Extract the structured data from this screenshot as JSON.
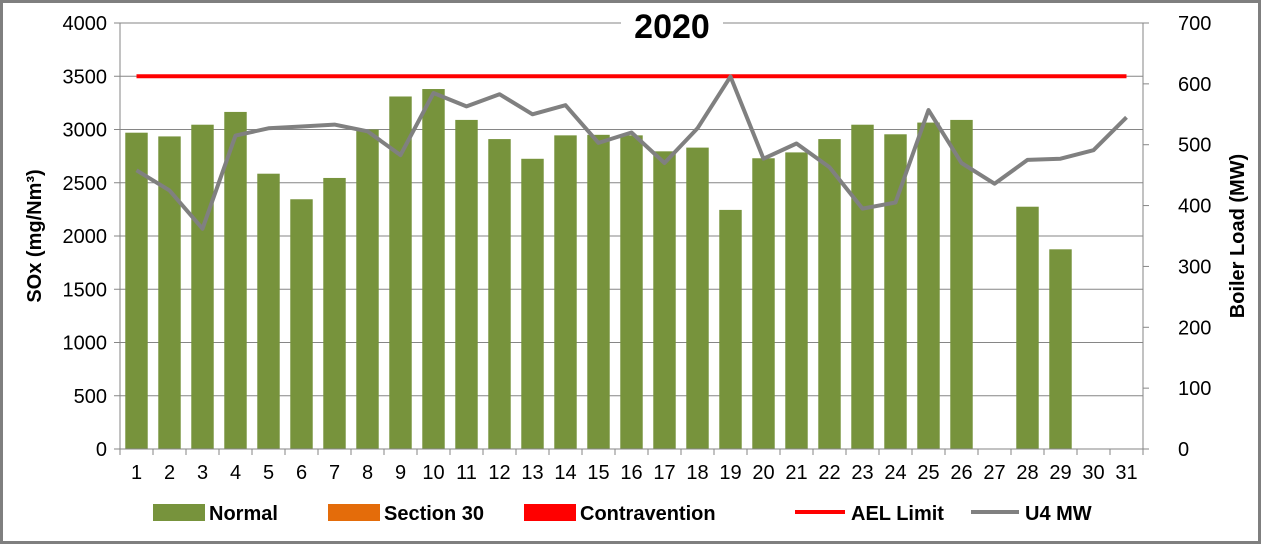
{
  "chart_data": {
    "type": "bar",
    "title": "2020",
    "ylabel": "SOx (mg/Nm³)",
    "y2label": "Boiler Load (MW)",
    "ylim": [
      0,
      4000
    ],
    "y2lim": [
      0,
      700
    ],
    "yticks": [
      0,
      500,
      1000,
      1500,
      2000,
      2500,
      3000,
      3500,
      4000
    ],
    "y2ticks": [
      0,
      100,
      200,
      300,
      400,
      500,
      600,
      700
    ],
    "grid": true,
    "legend_position": "bottom",
    "categories": [
      "1",
      "2",
      "3",
      "4",
      "5",
      "6",
      "7",
      "8",
      "9",
      "10",
      "11",
      "12",
      "13",
      "14",
      "15",
      "16",
      "17",
      "18",
      "19",
      "20",
      "21",
      "22",
      "23",
      "24",
      "25",
      "26",
      "27",
      "28",
      "29",
      "30",
      "31"
    ],
    "series": [
      {
        "name": "Normal",
        "type": "bar",
        "axis": "left",
        "color": "#77933c",
        "values": [
          2970,
          2935,
          3045,
          3165,
          2585,
          2345,
          2545,
          3000,
          3310,
          3380,
          3090,
          2910,
          2725,
          2945,
          2950,
          2945,
          2795,
          2830,
          2245,
          2730,
          2785,
          2910,
          3045,
          2955,
          3065,
          3090,
          null,
          2275,
          1875,
          null,
          null
        ]
      },
      {
        "name": "Section 30",
        "type": "bar",
        "axis": "left",
        "color": "#e46c0a",
        "values": [
          null,
          null,
          null,
          null,
          null,
          null,
          null,
          null,
          null,
          null,
          null,
          null,
          null,
          null,
          null,
          null,
          null,
          null,
          null,
          null,
          null,
          null,
          null,
          null,
          null,
          null,
          null,
          null,
          null,
          null,
          null
        ]
      },
      {
        "name": "Contravention",
        "type": "bar",
        "axis": "left",
        "color": "#ff0000",
        "values": [
          null,
          null,
          null,
          null,
          null,
          null,
          null,
          null,
          null,
          null,
          null,
          null,
          null,
          null,
          null,
          null,
          null,
          null,
          null,
          null,
          null,
          null,
          null,
          null,
          null,
          null,
          null,
          null,
          null,
          null,
          null
        ]
      },
      {
        "name": "AEL Limit",
        "type": "line",
        "axis": "left",
        "color": "#ff0000",
        "values": [
          3500,
          3500,
          3500,
          3500,
          3500,
          3500,
          3500,
          3500,
          3500,
          3500,
          3500,
          3500,
          3500,
          3500,
          3500,
          3500,
          3500,
          3500,
          3500,
          3500,
          3500,
          3500,
          3500,
          3500,
          3500,
          3500,
          3500,
          3500,
          3500,
          3500,
          3500
        ]
      },
      {
        "name": "U4 MW",
        "type": "line",
        "axis": "right",
        "color": "#808080",
        "values": [
          458,
          425,
          362,
          515,
          527,
          530,
          533,
          522,
          483,
          585,
          563,
          583,
          550,
          565,
          503,
          520,
          470,
          527,
          612,
          477,
          502,
          463,
          395,
          405,
          557,
          470,
          436,
          475,
          477,
          491,
          545
        ]
      }
    ]
  }
}
